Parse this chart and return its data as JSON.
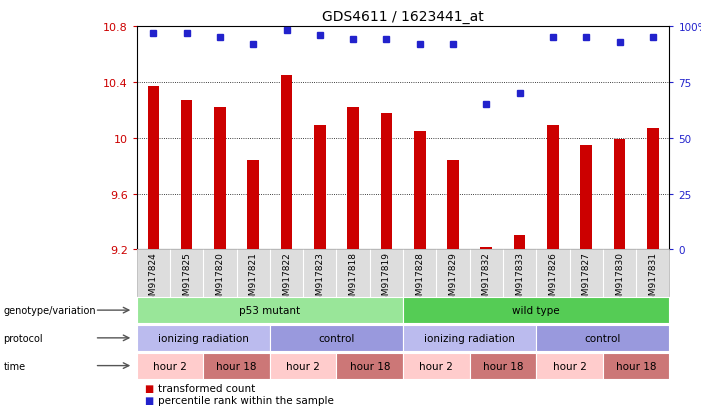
{
  "title": "GDS4611 / 1623441_at",
  "samples": [
    "GSM917824",
    "GSM917825",
    "GSM917820",
    "GSM917821",
    "GSM917822",
    "GSM917823",
    "GSM917818",
    "GSM917819",
    "GSM917828",
    "GSM917829",
    "GSM917832",
    "GSM917833",
    "GSM917826",
    "GSM917827",
    "GSM917830",
    "GSM917831"
  ],
  "bar_values": [
    10.37,
    10.27,
    10.22,
    9.84,
    10.45,
    10.09,
    10.22,
    10.18,
    10.05,
    9.84,
    9.22,
    9.3,
    10.09,
    9.95,
    9.99,
    10.07
  ],
  "dot_values": [
    97,
    97,
    95,
    92,
    98,
    96,
    94,
    94,
    92,
    92,
    65,
    70,
    95,
    95,
    93,
    95
  ],
  "ylim": [
    9.2,
    10.8
  ],
  "yticks": [
    9.2,
    9.6,
    10.0,
    10.4,
    10.8
  ],
  "right_yticks": [
    0,
    25,
    50,
    75,
    100
  ],
  "right_yticklabels": [
    "0",
    "25",
    "50",
    "75",
    "100%"
  ],
  "bar_color": "#cc0000",
  "dot_color": "#2222cc",
  "bar_width": 0.35,
  "genotype_labels": [
    {
      "label": "p53 mutant",
      "start": 0,
      "end": 7,
      "color": "#99e699"
    },
    {
      "label": "wild type",
      "start": 8,
      "end": 15,
      "color": "#55cc55"
    }
  ],
  "protocol_labels": [
    {
      "label": "ionizing radiation",
      "start": 0,
      "end": 3,
      "color": "#bbbbee"
    },
    {
      "label": "control",
      "start": 4,
      "end": 7,
      "color": "#9999dd"
    },
    {
      "label": "ionizing radiation",
      "start": 8,
      "end": 11,
      "color": "#bbbbee"
    },
    {
      "label": "control",
      "start": 12,
      "end": 15,
      "color": "#9999dd"
    }
  ],
  "time_labels": [
    {
      "label": "hour 2",
      "start": 0,
      "end": 1,
      "color": "#ffcccc"
    },
    {
      "label": "hour 18",
      "start": 2,
      "end": 3,
      "color": "#cc7777"
    },
    {
      "label": "hour 2",
      "start": 4,
      "end": 5,
      "color": "#ffcccc"
    },
    {
      "label": "hour 18",
      "start": 6,
      "end": 7,
      "color": "#cc7777"
    },
    {
      "label": "hour 2",
      "start": 8,
      "end": 9,
      "color": "#ffcccc"
    },
    {
      "label": "hour 18",
      "start": 10,
      "end": 11,
      "color": "#cc7777"
    },
    {
      "label": "hour 2",
      "start": 12,
      "end": 13,
      "color": "#ffcccc"
    },
    {
      "label": "hour 18",
      "start": 14,
      "end": 15,
      "color": "#cc7777"
    }
  ],
  "legend_items": [
    {
      "label": "transformed count",
      "color": "#cc0000"
    },
    {
      "label": "percentile rank within the sample",
      "color": "#2222cc"
    }
  ],
  "row_labels": [
    "genotype/variation",
    "protocol",
    "time"
  ],
  "background_color": "#ffffff",
  "plot_bg": "#ffffff",
  "tick_label_color_left": "#cc0000",
  "tick_label_color_right": "#2222cc",
  "xtick_bg": "#dddddd"
}
